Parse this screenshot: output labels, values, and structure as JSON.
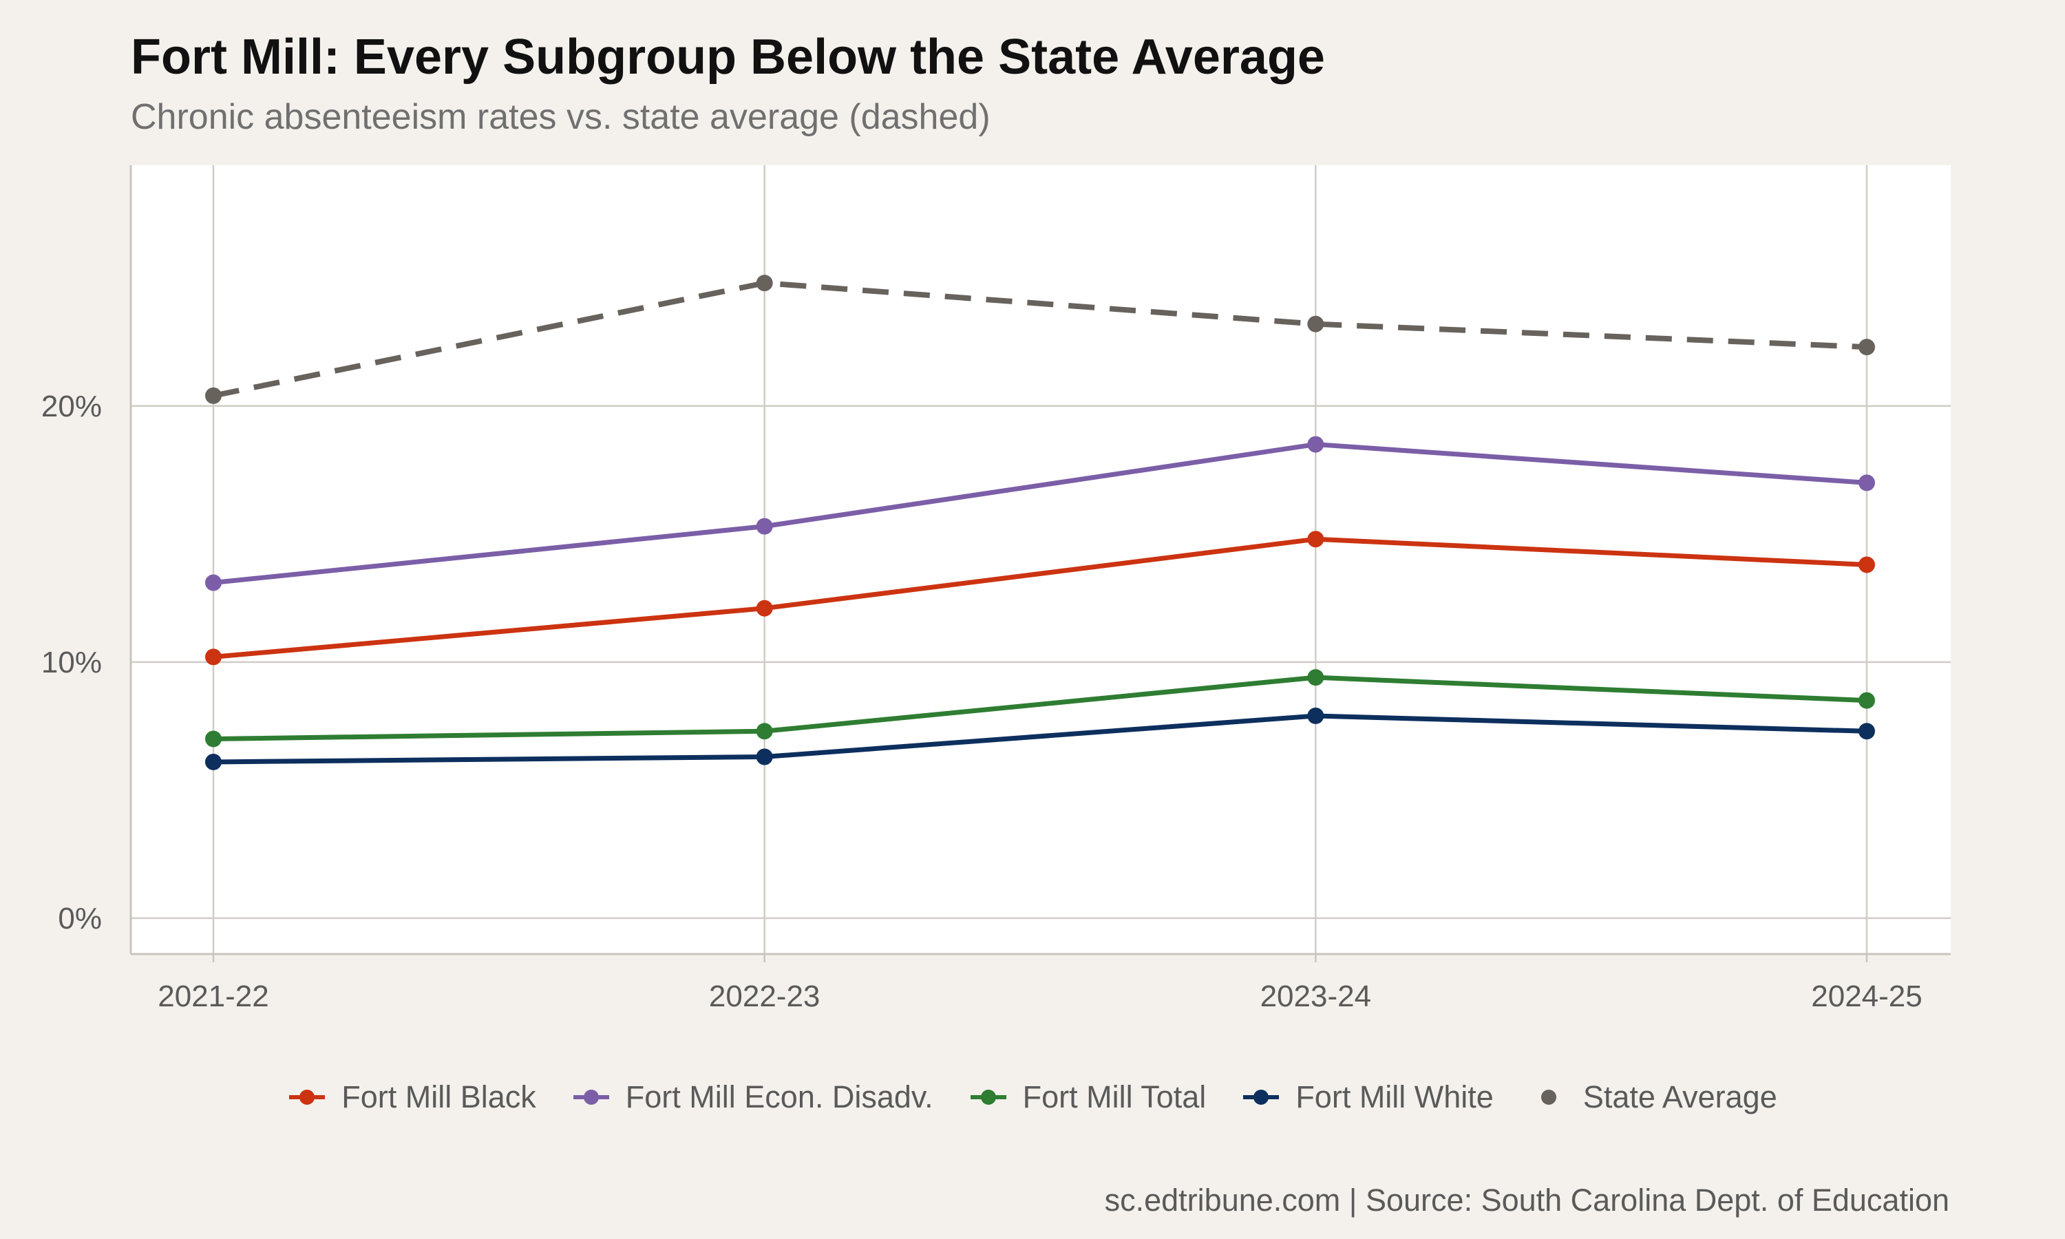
{
  "chart_data": {
    "type": "line",
    "title": "Fort Mill: Every Subgroup Below the State Average",
    "subtitle": "Chronic absenteeism rates vs. state average (dashed)",
    "caption": "sc.edtribune.com | Source: South Carolina Dept. of Education",
    "x": [
      "2021-22",
      "2022-23",
      "2023-24",
      "2024-25"
    ],
    "ylim": [
      -1.4,
      29.4
    ],
    "y_ticks": [
      0,
      10,
      20
    ],
    "y_tick_labels": [
      "0%",
      "10%",
      "20%"
    ],
    "y_unit": "%",
    "grid": true,
    "legend_position": "bottom",
    "series": [
      {
        "name": "Fort Mill Black",
        "color": "#cc3311",
        "dashed": false,
        "values": [
          10.2,
          12.1,
          14.8,
          13.8
        ]
      },
      {
        "name": "Fort Mill Econ. Disadv.",
        "color": "#7b5ea7",
        "dashed": false,
        "values": [
          13.1,
          15.3,
          18.5,
          17.0
        ]
      },
      {
        "name": "Fort Mill Total",
        "color": "#2e7d32",
        "dashed": false,
        "values": [
          7.0,
          7.3,
          9.4,
          8.5
        ]
      },
      {
        "name": "Fort Mill White",
        "color": "#0d2f5e",
        "dashed": false,
        "values": [
          6.1,
          6.3,
          7.9,
          7.3
        ]
      },
      {
        "name": "State Average",
        "color": "#67625c",
        "dashed": true,
        "values": [
          20.4,
          24.8,
          23.2,
          22.3
        ]
      }
    ]
  }
}
